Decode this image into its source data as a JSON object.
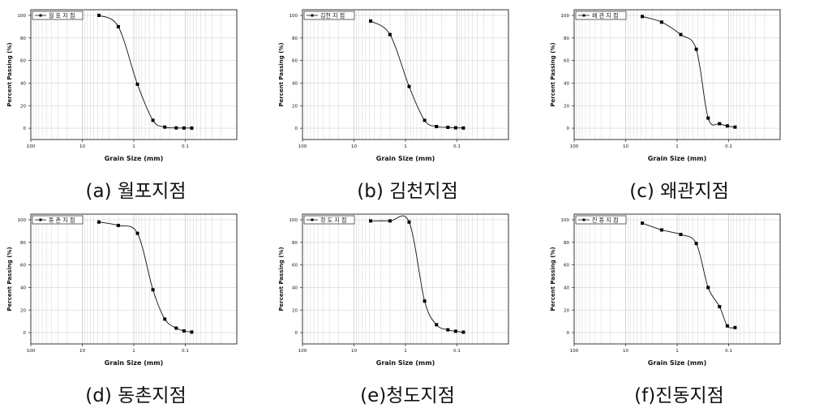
{
  "chart_data": [
    {
      "type": "line",
      "caption": "(a) 월포지점",
      "legend": "월 포 지 점",
      "xlabel": "Grain Size (mm)",
      "ylabel": "Percent Passing (%)",
      "x_scale": "log-reversed",
      "xlim": [
        100,
        0.01
      ],
      "ylim": [
        -10,
        105
      ],
      "xticks": [
        "100",
        "10",
        "1",
        "0.1"
      ],
      "yticks": [
        0,
        20,
        40,
        60,
        80,
        100
      ],
      "grid": true,
      "legend_position": "top-left",
      "series": [
        {
          "x": [
            4.75,
            2.0,
            0.85,
            0.425,
            0.25,
            0.15,
            0.106,
            0.075
          ],
          "y": [
            100,
            90,
            39,
            7,
            1,
            0.3,
            0.2,
            0.1
          ]
        }
      ]
    },
    {
      "type": "line",
      "caption": "(b) 김천지점",
      "legend": "김천 지 점",
      "xlabel": "Grain Size (mm)",
      "ylabel": "Percent Passing (%)",
      "x_scale": "log-reversed",
      "xlim": [
        100,
        0.01
      ],
      "ylim": [
        -10,
        105
      ],
      "xticks": [
        "100",
        "10",
        "1",
        "0.1"
      ],
      "yticks": [
        0,
        20,
        40,
        60,
        80,
        100
      ],
      "grid": true,
      "legend_position": "top-left",
      "series": [
        {
          "x": [
            4.75,
            2.0,
            0.85,
            0.425,
            0.25,
            0.15,
            0.106,
            0.075
          ],
          "y": [
            95,
            83,
            37,
            7,
            1.5,
            0.8,
            0.4,
            0.2
          ]
        }
      ]
    },
    {
      "type": "line",
      "caption": "(c) 왜관지점",
      "legend": "왜 관 지 점",
      "xlabel": "Grain Size (mm)",
      "ylabel": "Percent Passing (%)",
      "x_scale": "log-reversed",
      "xlim": [
        100,
        0.01
      ],
      "ylim": [
        -10,
        105
      ],
      "xticks": [
        "100",
        "10",
        "1",
        "0.1"
      ],
      "yticks": [
        0,
        20,
        40,
        60,
        80,
        100
      ],
      "grid": true,
      "legend_position": "top-left",
      "series": [
        {
          "x": [
            4.75,
            2.0,
            0.85,
            0.425,
            0.25,
            0.15,
            0.106,
            0.075
          ],
          "y": [
            99,
            94,
            83,
            70,
            9,
            4,
            2,
            1
          ]
        }
      ]
    },
    {
      "type": "line",
      "caption": "(d) 동촌지점",
      "legend": "동 촌 지 점",
      "xlabel": "Grain Size (mm)",
      "ylabel": "Percent Passing (%)",
      "x_scale": "log-reversed",
      "xlim": [
        100,
        0.01
      ],
      "ylim": [
        -10,
        105
      ],
      "xticks": [
        "100",
        "10",
        "1",
        "0.1"
      ],
      "yticks": [
        0,
        20,
        40,
        60,
        80,
        100
      ],
      "grid": true,
      "legend_position": "top-left",
      "series": [
        {
          "x": [
            4.75,
            2.0,
            0.85,
            0.425,
            0.25,
            0.15,
            0.106,
            0.075
          ],
          "y": [
            98,
            95,
            88,
            38,
            12,
            4,
            1.5,
            0.5
          ]
        }
      ]
    },
    {
      "type": "line",
      "caption": "(e)청도지점",
      "legend": "청 도 지 점",
      "xlabel": "Grain Size (mm)",
      "ylabel": "Percent Passing (%)",
      "x_scale": "log-reversed",
      "xlim": [
        100,
        0.01
      ],
      "ylim": [
        -10,
        105
      ],
      "xticks": [
        "100",
        "10",
        "1",
        "0.1"
      ],
      "yticks": [
        0,
        20,
        40,
        60,
        80,
        100
      ],
      "grid": true,
      "legend_position": "top-left",
      "series": [
        {
          "x": [
            4.75,
            2.0,
            0.85,
            0.425,
            0.25,
            0.15,
            0.106,
            0.075
          ],
          "y": [
            99,
            99,
            98,
            28,
            7,
            2.5,
            1.2,
            0.4
          ]
        }
      ]
    },
    {
      "type": "line",
      "caption": "(f)진동지점",
      "legend": "진 동 지 점",
      "xlabel": "Grain Size (mm)",
      "ylabel": "Percent Passing (%)",
      "x_scale": "log-reversed",
      "xlim": [
        100,
        0.01
      ],
      "ylim": [
        -10,
        105
      ],
      "xticks": [
        "100",
        "10",
        "1",
        "0.1"
      ],
      "yticks": [
        0,
        20,
        40,
        60,
        80,
        100
      ],
      "grid": true,
      "legend_position": "top-left",
      "series": [
        {
          "x": [
            4.75,
            2.0,
            0.85,
            0.425,
            0.25,
            0.15,
            0.106,
            0.075
          ],
          "y": [
            97,
            91,
            87,
            79,
            40,
            23,
            6,
            4.5
          ]
        }
      ]
    }
  ]
}
